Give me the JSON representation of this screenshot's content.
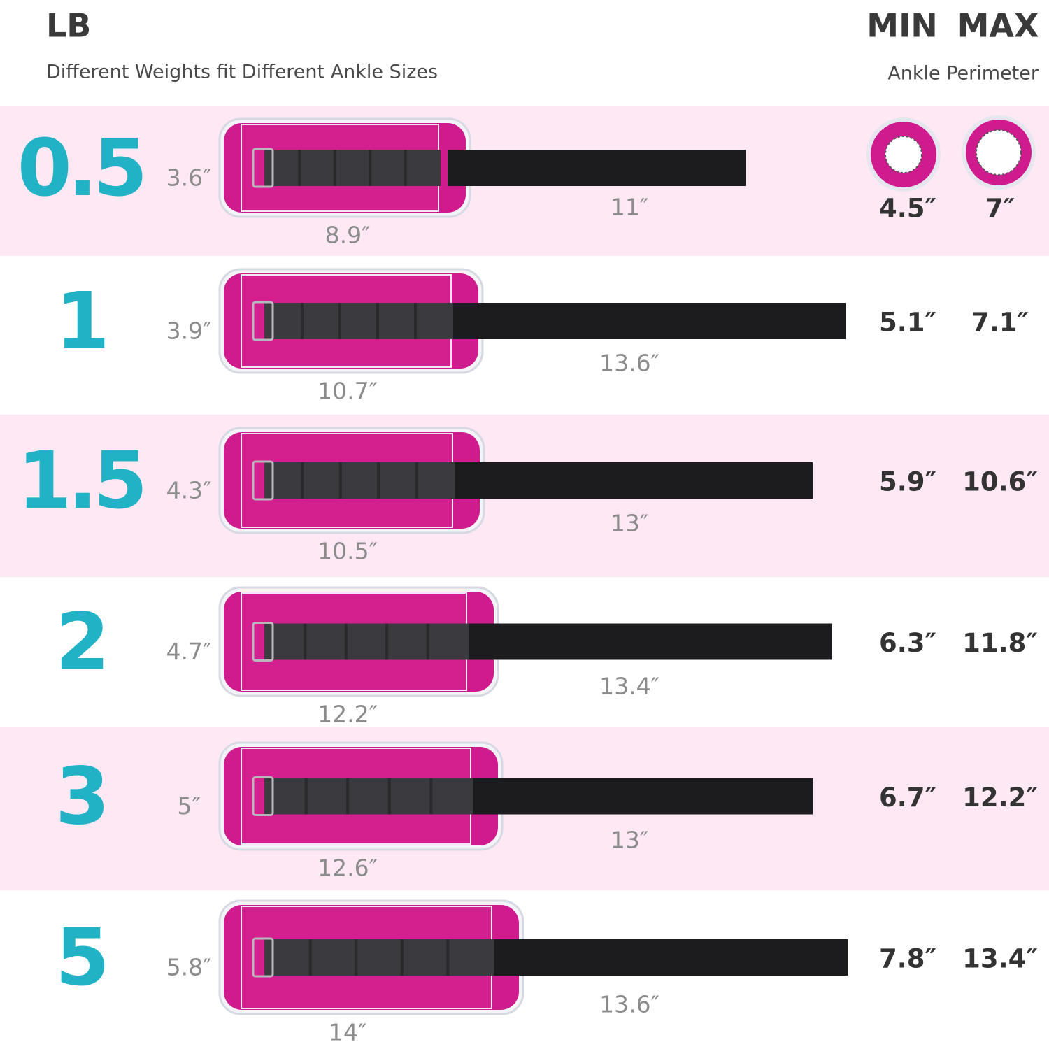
{
  "header": {
    "unit": "LB",
    "subtitle": "Different Weights fit Different Ankle Sizes",
    "min_label": "MIN",
    "max_label": "MAX",
    "perimeter_label": "Ankle Perimeter"
  },
  "rows": [
    {
      "weight": "0.5",
      "height": "3.6″",
      "length": "8.9″",
      "strap": "11″",
      "min": "4.5″",
      "max": "7″"
    },
    {
      "weight": "1",
      "height": "3.9″",
      "length": "10.7″",
      "strap": "13.6″",
      "min": "5.1″",
      "max": "7.1″"
    },
    {
      "weight": "1.5",
      "height": "4.3″",
      "length": "10.5″",
      "strap": "13″",
      "min": "5.9″",
      "max": "10.6″"
    },
    {
      "weight": "2",
      "height": "4.7″",
      "length": "12.2″",
      "strap": "13.4″",
      "min": "6.3″",
      "max": "11.8″"
    },
    {
      "weight": "3",
      "height": "5″",
      "length": "12.6″",
      "strap": "13″",
      "min": "6.7″",
      "max": "12.2″"
    },
    {
      "weight": "5",
      "height": "5.8″",
      "length": "14″",
      "strap": "13.6″",
      "min": "7.8″",
      "max": "13.4″"
    }
  ]
}
